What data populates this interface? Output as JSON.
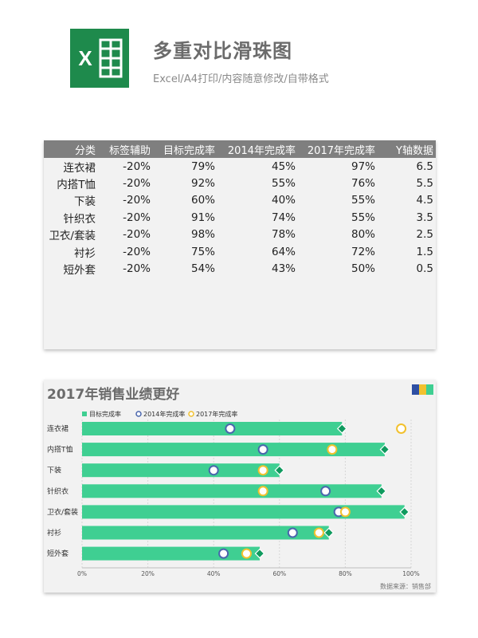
{
  "header": {
    "title": "多重对比滑珠图",
    "subtitle": "Excel/A4打印/内容随意修改/自带格式",
    "logo_letter": "X"
  },
  "table": {
    "columns": [
      "分类",
      "标签辅助",
      "目标完成率",
      "2014年完成率",
      "2017年完成率",
      "Y轴数据"
    ],
    "rows": [
      [
        "连衣裙",
        "-20%",
        "79%",
        "45%",
        "97%",
        "6.5"
      ],
      [
        "内搭T恤",
        "-20%",
        "92%",
        "55%",
        "76%",
        "5.5"
      ],
      [
        "下装",
        "-20%",
        "60%",
        "40%",
        "55%",
        "4.5"
      ],
      [
        "针织衣",
        "-20%",
        "91%",
        "74%",
        "55%",
        "3.5"
      ],
      [
        "卫衣/套装",
        "-20%",
        "98%",
        "78%",
        "80%",
        "2.5"
      ],
      [
        "衬衫",
        "-20%",
        "75%",
        "64%",
        "72%",
        "1.5"
      ],
      [
        "短外套",
        "-20%",
        "54%",
        "43%",
        "50%",
        "0.5"
      ]
    ]
  },
  "colors": {
    "bar": "#3fcf92",
    "diamond": "#0f9a5e",
    "circle_2014": "#4a66ad",
    "circle_2017": "#f2c12e",
    "excel_green": "#1e8a4c",
    "corner_blue": "#2e4fa3",
    "corner_yellow": "#f2c12e",
    "corner_green": "#3fcf92"
  },
  "chart_data": {
    "type": "bar",
    "title": "2017年销售业绩更好",
    "categories": [
      "连衣裙",
      "内搭T恤",
      "下装",
      "针织衣",
      "卫衣/套装",
      "衬衫",
      "短外套"
    ],
    "series": [
      {
        "name": "目标完成率",
        "values": [
          79,
          92,
          60,
          91,
          98,
          75,
          54
        ]
      },
      {
        "name": "2014年完成率",
        "values": [
          45,
          55,
          40,
          74,
          78,
          64,
          43
        ]
      },
      {
        "name": "2017年完成率",
        "values": [
          97,
          76,
          55,
          55,
          80,
          72,
          50
        ]
      }
    ],
    "xlim": [
      0,
      100
    ],
    "xticks": [
      "0%",
      "20%",
      "40%",
      "60%",
      "80%",
      "100%"
    ],
    "legend_position": "top-left",
    "source": "数据来源：销售部"
  }
}
